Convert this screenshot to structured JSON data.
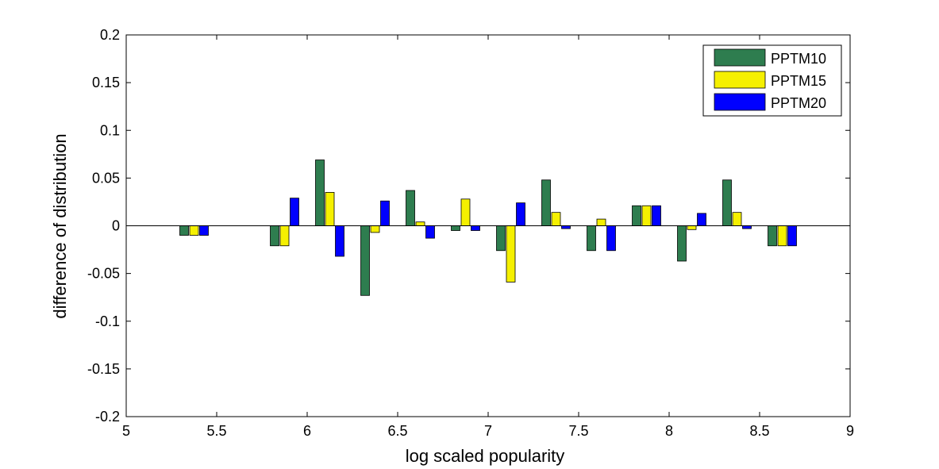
{
  "chart_data": {
    "type": "bar",
    "xlabel": "log scaled popularity",
    "ylabel": "difference of distribution",
    "xlim": [
      5,
      9
    ],
    "ylim": [
      -0.2,
      0.2
    ],
    "xticks": [
      "5",
      "5.5",
      "6",
      "6.5",
      "7",
      "7.5",
      "8",
      "8.5",
      "9"
    ],
    "yticks": [
      "0.2",
      "0.15",
      "0.1",
      "0.05",
      "0",
      "-0.05",
      "-0.1",
      "-0.15",
      "-0.2"
    ],
    "x": [
      5.375,
      5.875,
      6.125,
      6.375,
      6.625,
      6.875,
      7.125,
      7.375,
      7.625,
      7.875,
      8.125,
      8.375,
      8.625
    ],
    "series": [
      {
        "name": "PPTM10",
        "color": "#2e7d4f",
        "values": [
          -0.01,
          -0.021,
          0.069,
          -0.073,
          0.037,
          -0.005,
          -0.026,
          0.048,
          -0.026,
          0.021,
          -0.037,
          0.048,
          -0.021
        ]
      },
      {
        "name": "PPTM15",
        "color": "#f5f000",
        "values": [
          -0.01,
          -0.021,
          0.035,
          -0.007,
          0.004,
          0.028,
          -0.059,
          0.014,
          0.007,
          0.021,
          -0.004,
          0.014,
          -0.021
        ]
      },
      {
        "name": "PPTM20",
        "color": "#0000ff",
        "values": [
          -0.01,
          0.029,
          -0.032,
          0.026,
          -0.013,
          -0.005,
          0.024,
          -0.003,
          -0.026,
          0.021,
          0.013,
          -0.003,
          -0.021
        ]
      }
    ],
    "grid": false,
    "legend": "top-right"
  }
}
